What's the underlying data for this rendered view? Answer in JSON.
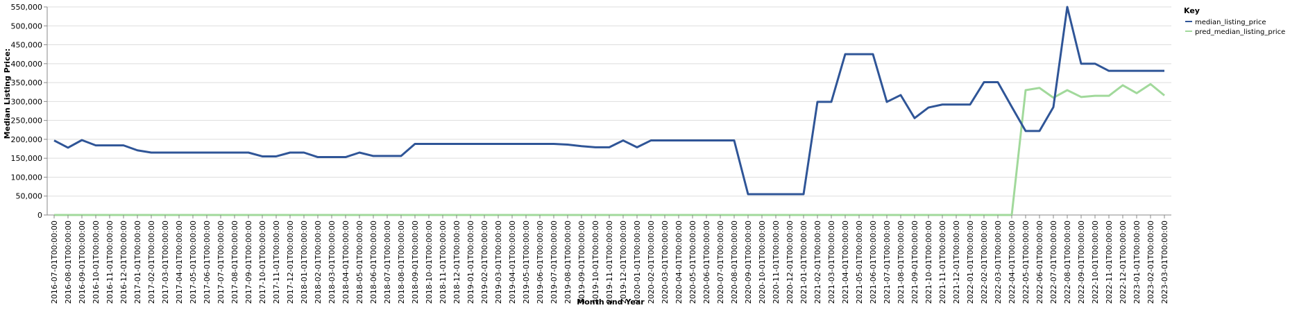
{
  "chart_data": {
    "type": "line",
    "xlabel": "Month and Year",
    "ylabel": "Median Listing Price:",
    "ylim": [
      0,
      550000
    ],
    "yticks": [
      "0",
      "50,000",
      "100,000",
      "150,000",
      "200,000",
      "250,000",
      "300,000",
      "350,000",
      "400,000",
      "450,000",
      "500,000",
      "550,000"
    ],
    "ytick_values": [
      0,
      50000,
      100000,
      150000,
      200000,
      250000,
      300000,
      350000,
      400000,
      450000,
      500000,
      550000
    ],
    "grid": true,
    "legend": {
      "title": "Key",
      "placement": "right"
    },
    "x": [
      "2016-07-01T00:00:00",
      "2016-08-01T00:00:00",
      "2016-09-01T00:00:00",
      "2016-10-01T00:00:00",
      "2016-11-01T00:00:00",
      "2016-12-01T00:00:00",
      "2017-01-01T00:00:00",
      "2017-02-01T00:00:00",
      "2017-03-01T00:00:00",
      "2017-04-01T00:00:00",
      "2017-05-01T00:00:00",
      "2017-06-01T00:00:00",
      "2017-07-01T00:00:00",
      "2017-08-01T00:00:00",
      "2017-09-01T00:00:00",
      "2017-10-01T00:00:00",
      "2017-11-01T00:00:00",
      "2017-12-01T00:00:00",
      "2018-01-01T00:00:00",
      "2018-02-01T00:00:00",
      "2018-03-01T00:00:00",
      "2018-04-01T00:00:00",
      "2018-05-01T00:00:00",
      "2018-06-01T00:00:00",
      "2018-07-01T00:00:00",
      "2018-08-01T00:00:00",
      "2018-09-01T00:00:00",
      "2018-10-01T00:00:00",
      "2018-11-01T00:00:00",
      "2018-12-01T00:00:00",
      "2019-01-01T00:00:00",
      "2019-02-01T00:00:00",
      "2019-03-01T00:00:00",
      "2019-04-01T00:00:00",
      "2019-05-01T00:00:00",
      "2019-06-01T00:00:00",
      "2019-07-01T00:00:00",
      "2019-08-01T00:00:00",
      "2019-09-01T00:00:00",
      "2019-10-01T00:00:00",
      "2019-11-01T00:00:00",
      "2019-12-01T00:00:00",
      "2020-01-01T00:00:00",
      "2020-02-01T00:00:00",
      "2020-03-01T00:00:00",
      "2020-04-01T00:00:00",
      "2020-05-01T00:00:00",
      "2020-06-01T00:00:00",
      "2020-07-01T00:00:00",
      "2020-08-01T00:00:00",
      "2020-09-01T00:00:00",
      "2020-10-01T00:00:00",
      "2020-11-01T00:00:00",
      "2020-12-01T00:00:00",
      "2021-01-01T00:00:00",
      "2021-02-01T00:00:00",
      "2021-03-01T00:00:00",
      "2021-04-01T00:00:00",
      "2021-05-01T00:00:00",
      "2021-06-01T00:00:00",
      "2021-07-01T00:00:00",
      "2021-08-01T00:00:00",
      "2021-09-01T00:00:00",
      "2021-10-01T00:00:00",
      "2021-11-01T00:00:00",
      "2021-12-01T00:00:00",
      "2022-01-01T00:00:00",
      "2022-02-01T00:00:00",
      "2022-03-01T00:00:00",
      "2022-04-01T00:00:00",
      "2022-05-01T00:00:00",
      "2022-06-01T00:00:00",
      "2022-07-01T00:00:00",
      "2022-08-01T00:00:00",
      "2022-09-01T00:00:00",
      "2022-10-01T00:00:00",
      "2022-11-01T00:00:00",
      "2022-12-01T00:00:00",
      "2023-01-01T00:00:00",
      "2023-02-01T00:00:00",
      "2023-03-01T00:00:00"
    ],
    "series": [
      {
        "name": "median_listing_price",
        "color": "#2f5597",
        "values": [
          197000,
          178000,
          198000,
          184000,
          184000,
          184000,
          171000,
          165000,
          165000,
          165000,
          165000,
          165000,
          165000,
          165000,
          165000,
          155000,
          155000,
          165000,
          165000,
          153000,
          153000,
          153000,
          165000,
          156000,
          156000,
          156000,
          188000,
          188000,
          188000,
          188000,
          188000,
          188000,
          188000,
          188000,
          188000,
          188000,
          188000,
          186000,
          182000,
          179000,
          179000,
          197000,
          179000,
          197000,
          197000,
          197000,
          197000,
          197000,
          197000,
          197000,
          55000,
          55000,
          55000,
          55000,
          55000,
          299000,
          299000,
          425000,
          425000,
          425000,
          299000,
          317000,
          256000,
          284000,
          292000,
          292000,
          292000,
          351000,
          351000,
          286000,
          222000,
          222000,
          285000,
          550000,
          400000,
          400000,
          381000,
          381000,
          381000,
          381000,
          381000
        ]
      },
      {
        "name": "pred_median_listing_price",
        "color": "#a1d99b",
        "values": [
          0,
          0,
          0,
          0,
          0,
          0,
          0,
          0,
          0,
          0,
          0,
          0,
          0,
          0,
          0,
          0,
          0,
          0,
          0,
          0,
          0,
          0,
          0,
          0,
          0,
          0,
          0,
          0,
          0,
          0,
          0,
          0,
          0,
          0,
          0,
          0,
          0,
          0,
          0,
          0,
          0,
          0,
          0,
          0,
          0,
          0,
          0,
          0,
          0,
          0,
          0,
          0,
          0,
          0,
          0,
          0,
          0,
          0,
          0,
          0,
          0,
          0,
          0,
          0,
          0,
          0,
          0,
          0,
          0,
          0,
          330000,
          336000,
          310000,
          330000,
          312000,
          315000,
          315000,
          343000,
          322000,
          346000,
          316000
        ]
      }
    ]
  }
}
